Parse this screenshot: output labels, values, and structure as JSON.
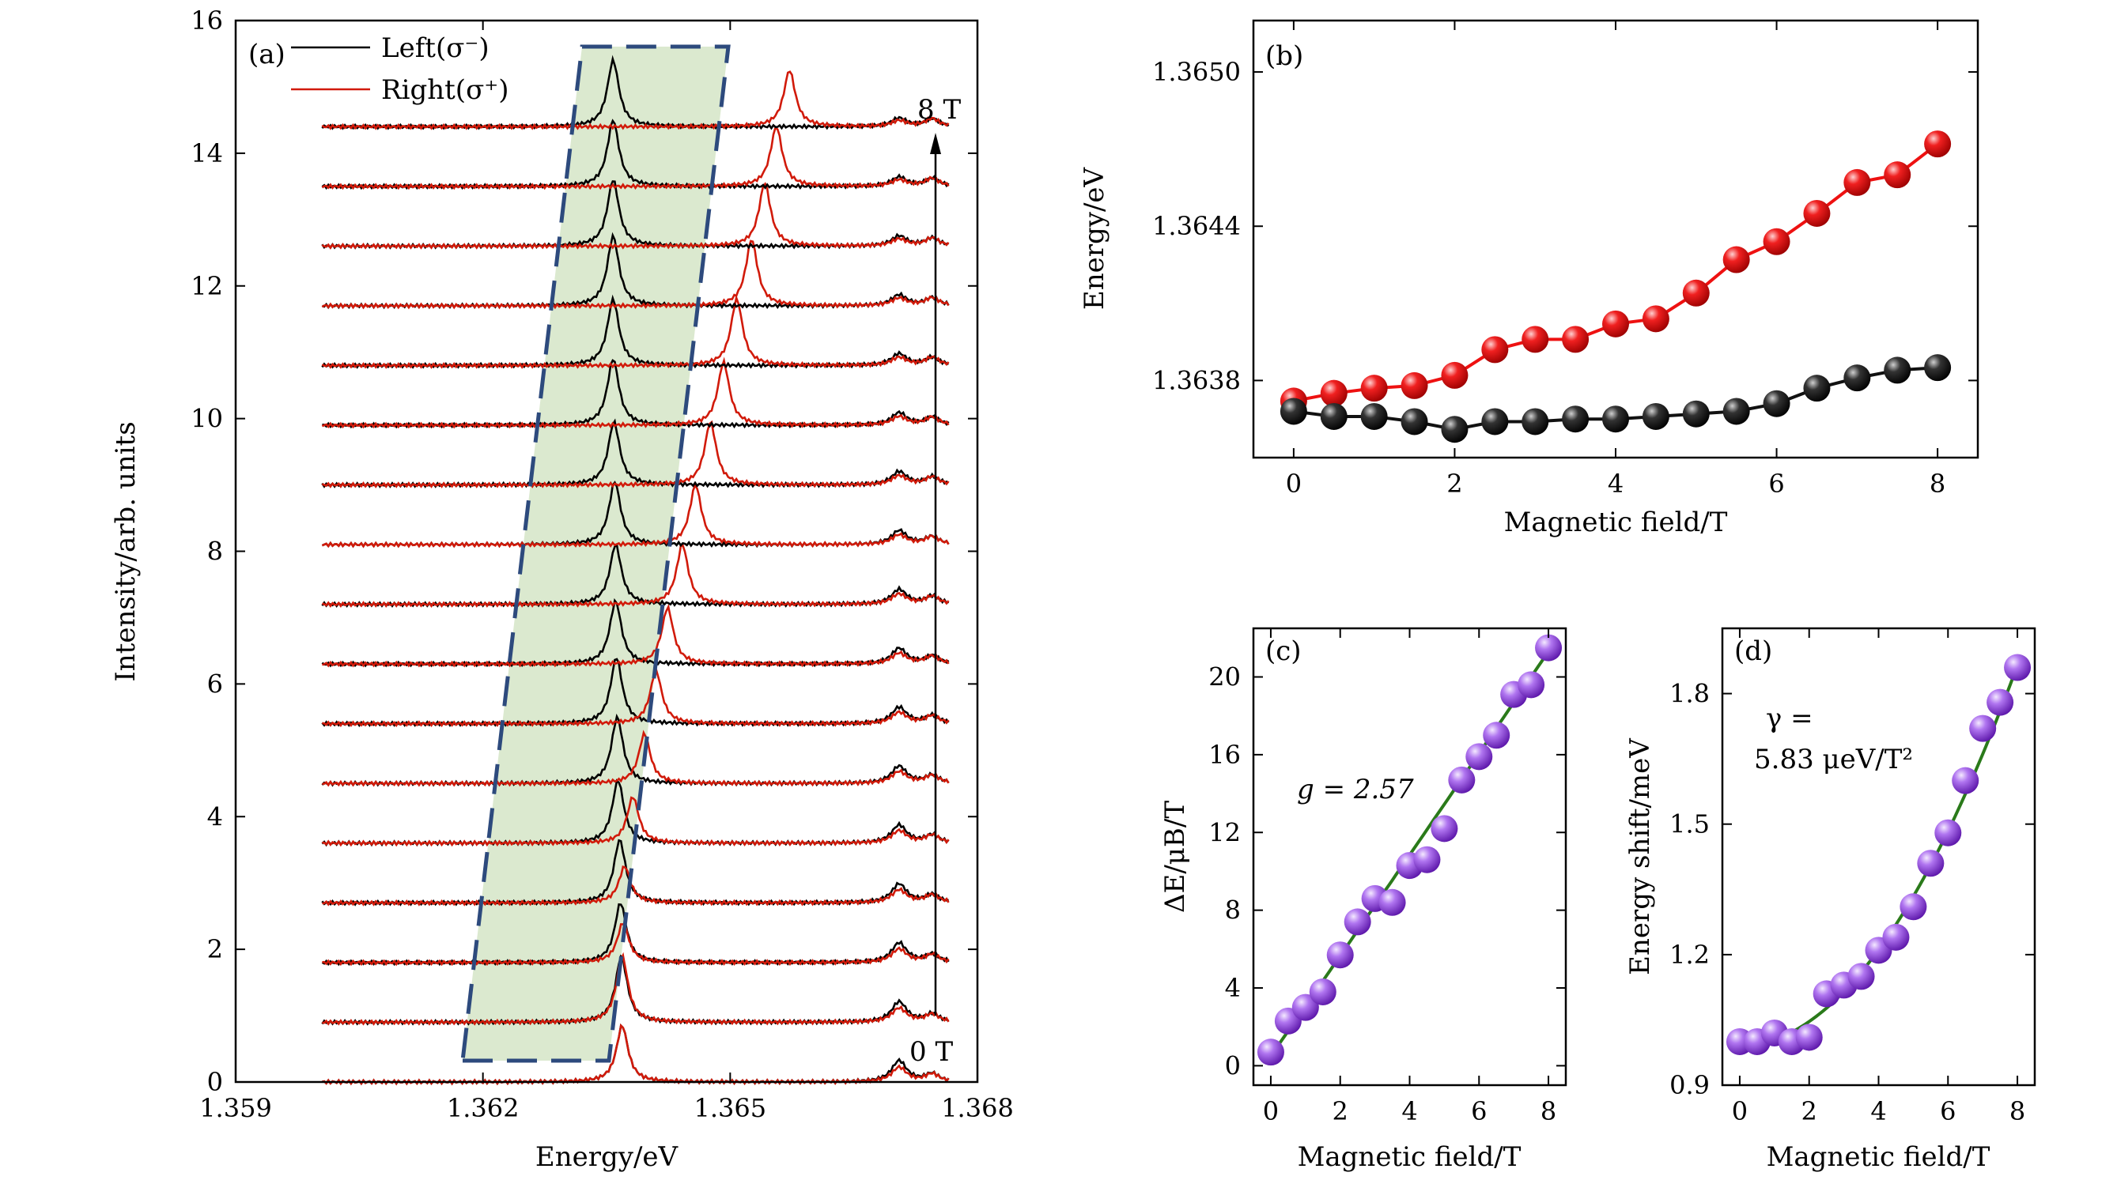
{
  "colors": {
    "left": "#000000",
    "right": "#d11a0a",
    "fit": "#2a7a1a",
    "points_purple": "#8a2be2",
    "points_red": "#ee1111",
    "points_black": "#111111",
    "shade": "#dbe9cf",
    "dash": "#2d4a7d"
  },
  "chart_data": [
    {
      "panel": "(a)",
      "type": "line",
      "xlabel": "Energy/eV",
      "ylabel": "Intensity/arb. units",
      "xlim": [
        1.359,
        1.368
      ],
      "ylim": [
        0,
        16
      ],
      "xticks": [
        "1.359",
        "1.362",
        "1.365",
        "1.368"
      ],
      "yticks": [
        "0",
        "2",
        "4",
        "6",
        "8",
        "10",
        "12",
        "14",
        "16"
      ],
      "legend": [
        "Left(σ⁻)",
        "Right(σ⁺)"
      ],
      "legend_position": "top-left",
      "annotations": {
        "top": "8 T",
        "bottom": "0 T"
      },
      "fields_T": [
        0,
        0.5,
        1,
        1.5,
        2,
        2.5,
        3,
        3.5,
        4,
        4.5,
        5,
        5.5,
        6,
        6.5,
        7,
        7.5,
        8
      ],
      "offsets": [
        0,
        0.9,
        1.8,
        2.7,
        3.6,
        4.5,
        5.4,
        6.3,
        7.2,
        8.1,
        9.0,
        9.9,
        10.8,
        11.7,
        12.6,
        13.5,
        14.4
      ],
      "left_peak_eV": [
        1.36369,
        1.36368,
        1.36367,
        1.36366,
        1.36364,
        1.36363,
        1.36362,
        1.36361,
        1.36361,
        1.3636,
        1.36359,
        1.36358,
        1.36358,
        1.36358,
        1.36358,
        1.36358,
        1.36358
      ],
      "right_peak_eV": [
        1.36369,
        1.36369,
        1.3637,
        1.36372,
        1.36382,
        1.36396,
        1.3641,
        1.36424,
        1.36442,
        1.36458,
        1.36476,
        1.36492,
        1.36508,
        1.36526,
        1.36542,
        1.36556,
        1.36572
      ],
      "left_peak_height": [
        0.85,
        1.0,
        0.9,
        0.95,
        0.95,
        1.0,
        1.0,
        0.95,
        0.9,
        0.95,
        0.95,
        1.0,
        1.0,
        1.05,
        1.0,
        1.0,
        1.0
      ],
      "right_peak_height": [
        0.85,
        1.0,
        0.6,
        0.55,
        0.7,
        0.75,
        0.8,
        0.85,
        0.9,
        0.9,
        0.95,
        0.95,
        1.0,
        1.0,
        0.95,
        0.9,
        0.85
      ],
      "shaded_region": true
    },
    {
      "panel": "(b)",
      "type": "scatter",
      "xlabel": "Magnetic field/T",
      "ylabel": "Energy/eV",
      "xlim": [
        -0.5,
        8.5
      ],
      "ylim": [
        1.3635,
        1.3652
      ],
      "xticks": [
        "0",
        "2",
        "4",
        "6",
        "8"
      ],
      "yticks": [
        "1.3638",
        "1.3644",
        "1.3650"
      ],
      "x": [
        0,
        0.5,
        1,
        1.5,
        2,
        2.5,
        3,
        3.5,
        4,
        4.5,
        5,
        5.5,
        6,
        6.5,
        7,
        7.5,
        8
      ],
      "series": [
        {
          "values": [
            1.36372,
            1.36375,
            1.36377,
            1.36378,
            1.36382,
            1.36392,
            1.36396,
            1.36396,
            1.36402,
            1.36404,
            1.36414,
            1.36427,
            1.36434,
            1.36445,
            1.36457,
            1.3646,
            1.36472
          ]
        },
        {
          "values": [
            1.36368,
            1.36366,
            1.36366,
            1.36364,
            1.36361,
            1.36364,
            1.36364,
            1.36365,
            1.36365,
            1.36366,
            1.36367,
            1.36368,
            1.36371,
            1.36377,
            1.36381,
            1.36384,
            1.36385
          ]
        }
      ]
    },
    {
      "panel": "(c)",
      "type": "scatter",
      "xlabel": "Magnetic field/T",
      "ylabel": "ΔE/μB/T",
      "xlim": [
        -0.5,
        8.5
      ],
      "ylim": [
        -1,
        22.5
      ],
      "xticks": [
        "0",
        "2",
        "4",
        "6",
        "8"
      ],
      "yticks": [
        "0",
        "4",
        "8",
        "12",
        "16",
        "20"
      ],
      "x": [
        0,
        0.5,
        1,
        1.5,
        2,
        2.5,
        3,
        3.5,
        4,
        4.5,
        5,
        5.5,
        6,
        6.5,
        7,
        7.5,
        8
      ],
      "values": [
        0.7,
        2.3,
        3.0,
        3.8,
        5.7,
        7.4,
        8.6,
        8.4,
        10.3,
        10.6,
        12.2,
        14.7,
        15.9,
        17.0,
        19.1,
        19.6,
        21.5
      ],
      "fit_label": "g = 2.57"
    },
    {
      "panel": "(d)",
      "type": "scatter",
      "xlabel": "Magnetic field/T",
      "ylabel": "Energy shift/meV",
      "xlim": [
        -0.5,
        8.5
      ],
      "ylim": [
        0.9,
        1.95
      ],
      "xticks": [
        "0",
        "2",
        "4",
        "6",
        "8"
      ],
      "yticks": [
        "0.9",
        "1.2",
        "1.5",
        "1.8"
      ],
      "x": [
        0,
        0.5,
        1,
        1.5,
        2,
        2.5,
        3,
        3.5,
        4,
        4.5,
        5,
        5.5,
        6,
        6.5,
        7,
        7.5,
        8
      ],
      "values": [
        1.0,
        1.0,
        1.02,
        1.0,
        1.01,
        1.11,
        1.13,
        1.15,
        1.21,
        1.24,
        1.31,
        1.41,
        1.48,
        1.6,
        1.72,
        1.78,
        1.86
      ],
      "fit_label_line1": "γ =",
      "fit_label_line2": "5.83 μeV/T²"
    }
  ]
}
